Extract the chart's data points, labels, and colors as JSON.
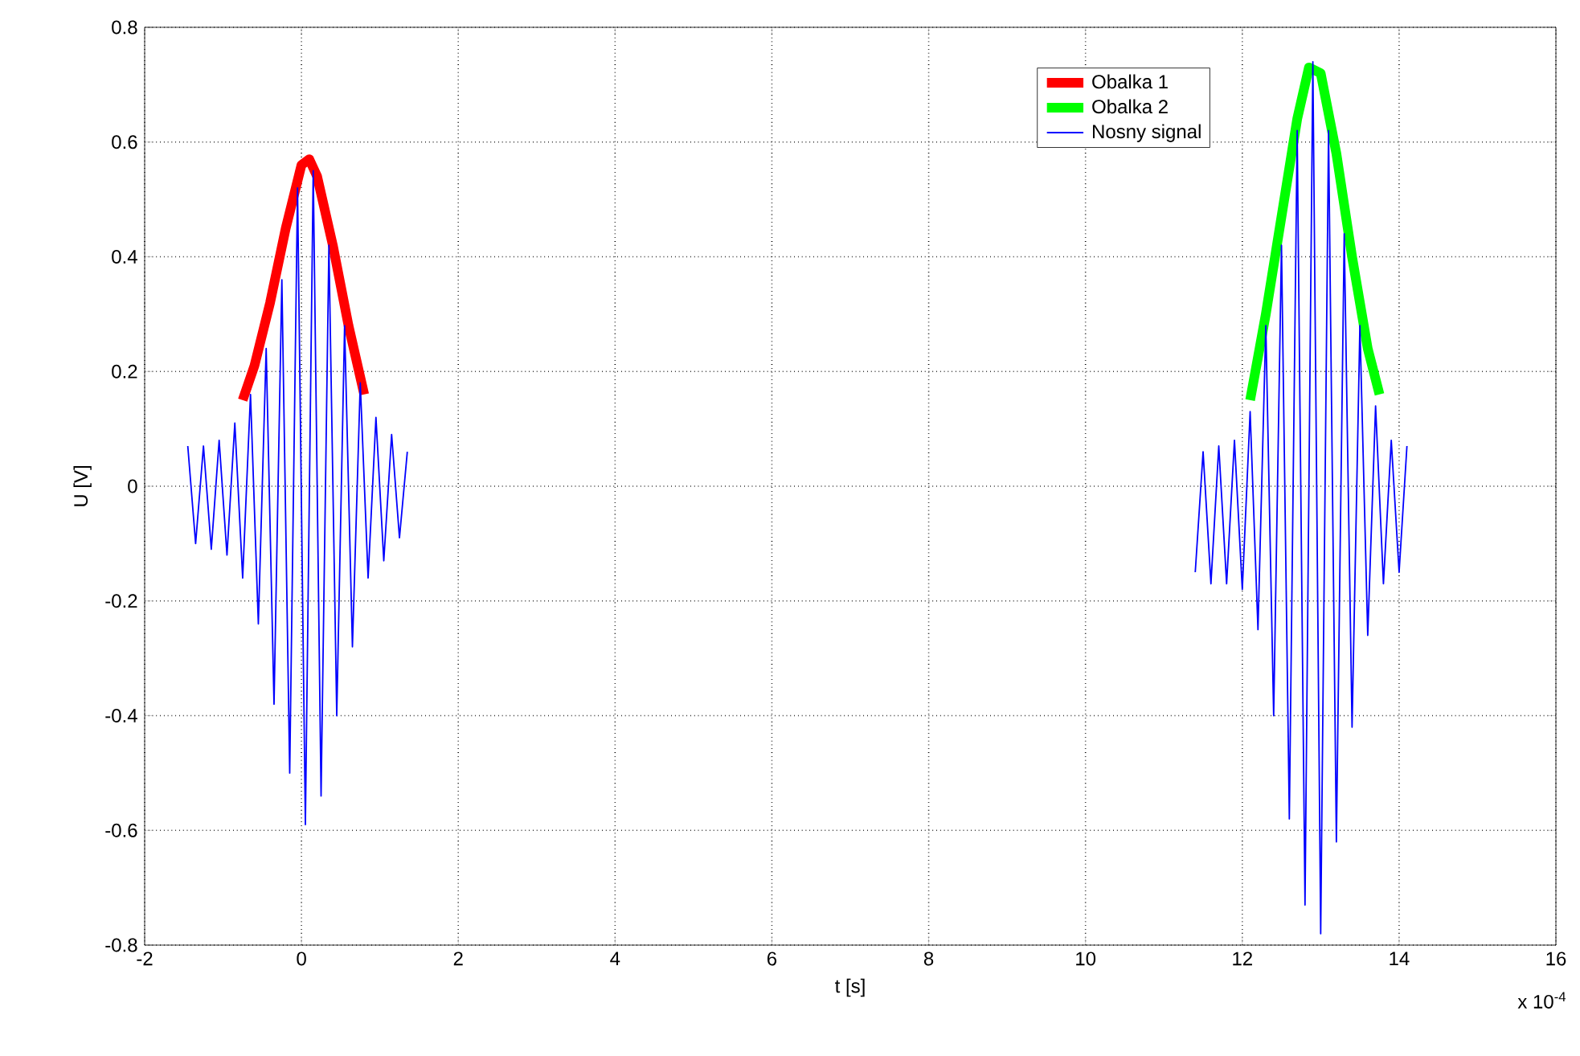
{
  "chart_data": {
    "type": "line",
    "xlabel": "t [s]",
    "ylabel": "U [V]",
    "annotations": [
      "x 10$^{-4}$"
    ],
    "xlim": [
      -2,
      16
    ],
    "xticks": [
      -2,
      0,
      2,
      4,
      6,
      8,
      10,
      12,
      14,
      16
    ],
    "ylim": [
      -0.8,
      0.8
    ],
    "yticks": [
      -0.8,
      -0.6,
      -0.4,
      -0.2,
      0,
      0.2,
      0.4,
      0.6,
      0.8
    ],
    "grid": true,
    "legend": "top right",
    "line_style": "solid",
    "marker": "none",
    "series": [
      {
        "name": "Obalka 1",
        "color": "#ff0000",
        "x": [
          -0.75,
          -0.6,
          -0.4,
          -0.2,
          0,
          0.1,
          0.2,
          0.4,
          0.6,
          0.8
        ],
        "values": [
          0.15,
          0.21,
          0.32,
          0.45,
          0.56,
          0.57,
          0.54,
          0.42,
          0.28,
          0.16
        ]
      },
      {
        "name": "Obalka 2",
        "color": "#00ff00",
        "x": [
          12.1,
          12.3,
          12.5,
          12.7,
          12.85,
          13.0,
          13.2,
          13.4,
          13.6,
          13.75
        ],
        "values": [
          0.15,
          0.3,
          0.47,
          0.64,
          0.73,
          0.72,
          0.58,
          0.4,
          0.24,
          0.16
        ]
      },
      {
        "name": "Nosny signal",
        "color": "#0000ff",
        "x": [
          -1.45,
          -1.35,
          -1.25,
          -1.15,
          -1.05,
          -0.95,
          -0.85,
          -0.75,
          -0.65,
          -0.55,
          -0.45,
          -0.35,
          -0.25,
          -0.15,
          -0.05,
          0.05,
          0.15,
          0.25,
          0.35,
          0.45,
          0.55,
          0.65,
          0.75,
          0.85,
          0.95,
          1.05,
          1.15,
          1.25,
          1.35,
          6,
          11.4,
          11.5,
          11.6,
          11.7,
          11.8,
          11.9,
          12.0,
          12.1,
          12.2,
          12.3,
          12.4,
          12.5,
          12.6,
          12.7,
          12.8,
          12.9,
          13.0,
          13.1,
          13.2,
          13.3,
          13.4,
          13.5,
          13.6,
          13.7,
          13.8,
          13.9,
          14.0,
          14.1
        ],
        "values": [
          0.07,
          -0.1,
          0.07,
          -0.11,
          0.08,
          -0.12,
          0.11,
          -0.16,
          0.16,
          -0.24,
          0.24,
          -0.38,
          0.36,
          -0.5,
          0.52,
          -0.59,
          0.55,
          -0.54,
          0.42,
          -0.4,
          0.28,
          -0.28,
          0.18,
          -0.16,
          0.12,
          -0.13,
          0.09,
          -0.09,
          0.06,
          null,
          -0.15,
          0.06,
          -0.17,
          0.07,
          -0.17,
          0.08,
          -0.18,
          0.13,
          -0.25,
          0.28,
          -0.4,
          0.42,
          -0.58,
          0.62,
          -0.73,
          0.74,
          -0.78,
          0.62,
          -0.62,
          0.44,
          -0.42,
          0.28,
          -0.26,
          0.14,
          -0.17,
          0.08,
          -0.15,
          0.07
        ]
      }
    ]
  }
}
